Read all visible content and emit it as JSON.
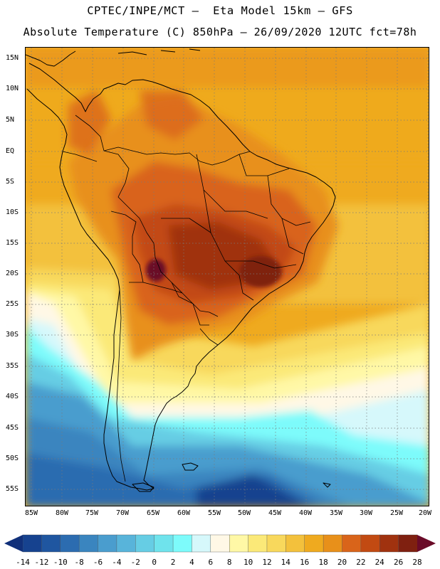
{
  "header": {
    "title_line1": "CPTEC/INPE/MCT –  Eta Model 15km – GFS",
    "title_line2": "Absolute Temperature (C) 850hPa – 26/09/2020 12UTC fct=78h"
  },
  "map": {
    "lat_labels": [
      "15N",
      "10N",
      "5N",
      "EQ",
      "5S",
      "10S",
      "15S",
      "20S",
      "25S",
      "30S",
      "35S",
      "40S",
      "45S",
      "50S",
      "55S"
    ],
    "lon_labels": [
      "85W",
      "80W",
      "75W",
      "70W",
      "65W",
      "60W",
      "55W",
      "50W",
      "45W",
      "40W",
      "35W",
      "30W",
      "25W",
      "20W"
    ]
  },
  "colorbar": {
    "labels": [
      "-14",
      "-12",
      "-10",
      "-8",
      "-6",
      "-4",
      "-2",
      "0",
      "2",
      "4",
      "6",
      "8",
      "10",
      "12",
      "14",
      "16",
      "18",
      "20",
      "22",
      "24",
      "26",
      "28"
    ],
    "colors": [
      "#16428f",
      "#1f56a0",
      "#2c6cb0",
      "#3a85bf",
      "#4a9dce",
      "#58b4da",
      "#66cde4",
      "#6fe3ec",
      "#7dfbfb",
      "#d6f8fb",
      "#fff8e6",
      "#fff8a6",
      "#fbe978",
      "#f8d85c",
      "#f3c13c",
      "#efaa1f",
      "#e8901a",
      "#d9641a",
      "#c24a12",
      "#a0320f",
      "#7f2010"
    ],
    "under_color": "#11307a",
    "over_color": "#6a0b28"
  }
}
